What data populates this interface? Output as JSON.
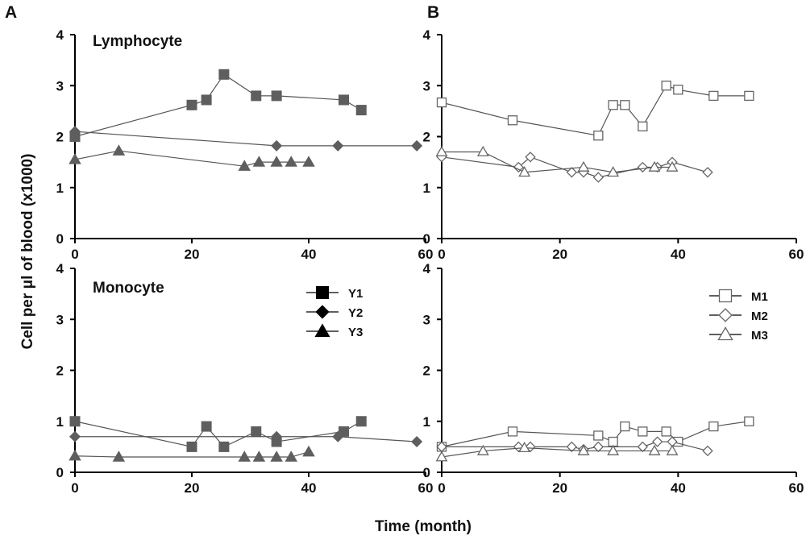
{
  "figure": {
    "panel_letters": [
      "A",
      "B"
    ],
    "ylabel": "Cell per μl of blood (x1000)",
    "xlabel": "Time (month)"
  },
  "chart_data": [
    {
      "type": "line",
      "panel": "A",
      "title": "Lymphocyte",
      "xlim": [
        0,
        60
      ],
      "ylim": [
        0,
        4
      ],
      "xticks": [
        0,
        20,
        40,
        60
      ],
      "yticks": [
        0,
        1,
        2,
        3,
        4
      ],
      "series": [
        {
          "name": "Y1",
          "marker": "square",
          "x": [
            0,
            20,
            22.5,
            25.5,
            31,
            34.5,
            46,
            49
          ],
          "y": [
            2.0,
            2.62,
            2.72,
            3.22,
            2.8,
            2.8,
            2.72,
            2.52
          ]
        },
        {
          "name": "Y2",
          "marker": "diamond",
          "x": [
            0,
            34.5,
            45,
            58.5
          ],
          "y": [
            2.1,
            1.82,
            1.82,
            1.82
          ]
        },
        {
          "name": "Y3",
          "marker": "triangle",
          "x": [
            0,
            7.5,
            29,
            31.5,
            34.5,
            37,
            40
          ],
          "y": [
            1.55,
            1.72,
            1.42,
            1.5,
            1.5,
            1.5,
            1.5
          ]
        }
      ]
    },
    {
      "type": "line",
      "panel": "B",
      "title": "",
      "xlim": [
        0,
        60
      ],
      "ylim": [
        0,
        4
      ],
      "xticks": [
        0,
        20,
        40,
        60
      ],
      "yticks": [
        0,
        1,
        2,
        3,
        4
      ],
      "series": [
        {
          "name": "M1",
          "marker": "open-square",
          "x": [
            0,
            12,
            26.5,
            29,
            31,
            34,
            38,
            40,
            46,
            52
          ],
          "y": [
            2.67,
            2.32,
            2.02,
            2.62,
            2.62,
            2.2,
            3.0,
            2.92,
            2.8,
            2.8
          ]
        },
        {
          "name": "M2",
          "marker": "open-diamond",
          "x": [
            0,
            13,
            15,
            22,
            24,
            26.5,
            34,
            36.5,
            39,
            45
          ],
          "y": [
            1.6,
            1.4,
            1.6,
            1.3,
            1.3,
            1.2,
            1.4,
            1.4,
            1.5,
            1.3
          ]
        },
        {
          "name": "M3",
          "marker": "open-triangle",
          "x": [
            0,
            7,
            14,
            24,
            29,
            36,
            39
          ],
          "y": [
            1.7,
            1.7,
            1.3,
            1.4,
            1.3,
            1.4,
            1.4
          ]
        }
      ]
    },
    {
      "type": "line",
      "panel": "A",
      "title": "Monocyte",
      "xlim": [
        0,
        60
      ],
      "ylim": [
        0,
        4
      ],
      "xticks": [
        0,
        20,
        40,
        60
      ],
      "yticks": [
        0,
        1,
        2,
        3,
        4
      ],
      "legend": {
        "position": "top-right",
        "entries": [
          "Y1",
          "Y2",
          "Y3"
        ]
      },
      "series": [
        {
          "name": "Y1",
          "marker": "square",
          "x": [
            0,
            20,
            22.5,
            25.5,
            31,
            34.5,
            46,
            49
          ],
          "y": [
            1.0,
            0.5,
            0.9,
            0.5,
            0.8,
            0.6,
            0.8,
            1.0
          ]
        },
        {
          "name": "Y2",
          "marker": "diamond",
          "x": [
            0,
            34.5,
            45,
            58.5
          ],
          "y": [
            0.7,
            0.7,
            0.7,
            0.6
          ]
        },
        {
          "name": "Y3",
          "marker": "triangle",
          "x": [
            0,
            7.5,
            29,
            31.5,
            34.5,
            37,
            40
          ],
          "y": [
            0.32,
            0.3,
            0.3,
            0.3,
            0.3,
            0.3,
            0.4
          ]
        }
      ]
    },
    {
      "type": "line",
      "panel": "B",
      "title": "",
      "xlim": [
        0,
        60
      ],
      "ylim": [
        0,
        4
      ],
      "xticks": [
        0,
        20,
        40,
        60
      ],
      "yticks": [
        0,
        1,
        2,
        3,
        4
      ],
      "legend": {
        "position": "top-right",
        "entries": [
          "M1",
          "M2",
          "M3"
        ]
      },
      "series": [
        {
          "name": "M1",
          "marker": "open-square",
          "x": [
            0,
            12,
            26.5,
            29,
            31,
            34,
            38,
            40,
            46,
            52
          ],
          "y": [
            0.5,
            0.8,
            0.72,
            0.6,
            0.9,
            0.8,
            0.8,
            0.6,
            0.9,
            1.0
          ]
        },
        {
          "name": "M2",
          "marker": "open-diamond",
          "x": [
            0,
            13,
            15,
            22,
            24,
            26.5,
            34,
            36.5,
            39,
            45
          ],
          "y": [
            0.5,
            0.5,
            0.5,
            0.5,
            0.45,
            0.5,
            0.5,
            0.6,
            0.6,
            0.42
          ]
        },
        {
          "name": "M3",
          "marker": "open-triangle",
          "x": [
            0,
            7,
            14,
            24,
            29,
            36,
            39
          ],
          "y": [
            0.3,
            0.42,
            0.48,
            0.42,
            0.42,
            0.42,
            0.42
          ]
        }
      ]
    }
  ]
}
